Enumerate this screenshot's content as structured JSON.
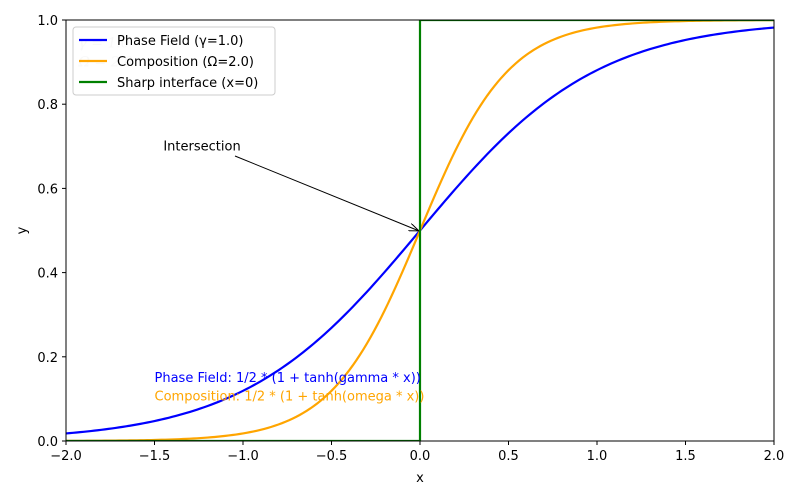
{
  "chart_data": {
    "type": "line",
    "xlabel": "x",
    "ylabel": "y",
    "xlim": [
      -2.0,
      2.0
    ],
    "ylim": [
      0.0,
      1.0
    ],
    "x_ticks": [
      "−2.0",
      "−1.5",
      "−1.0",
      "−0.5",
      "0.0",
      "0.5",
      "1.0",
      "1.5",
      "2.0"
    ],
    "x_tick_values": [
      -2.0,
      -1.5,
      -1.0,
      -0.5,
      0.0,
      0.5,
      1.0,
      1.5,
      2.0
    ],
    "y_ticks": [
      "0.0",
      "0.2",
      "0.4",
      "0.6",
      "0.8",
      "1.0"
    ],
    "y_tick_values": [
      0.0,
      0.2,
      0.4,
      0.6,
      0.8,
      1.0
    ],
    "grid": false,
    "legend_position": "top-left",
    "x": [
      -2.0,
      -1.75,
      -1.5,
      -1.25,
      -1.0,
      -0.75,
      -0.5,
      -0.25,
      0.0,
      0.25,
      0.5,
      0.75,
      1.0,
      1.25,
      1.5,
      1.75,
      2.0
    ],
    "series": [
      {
        "name": "Phase Field (γ=1.0)",
        "color": "#0000ff",
        "values": [
          0.018,
          0.029,
          0.047,
          0.076,
          0.119,
          0.182,
          0.269,
          0.378,
          0.5,
          0.622,
          0.731,
          0.818,
          0.881,
          0.924,
          0.953,
          0.971,
          0.982
        ]
      },
      {
        "name": "Composition (Ω=2.0)",
        "color": "#ffa500",
        "values": [
          0.0003,
          0.0009,
          0.0025,
          0.0067,
          0.018,
          0.047,
          0.119,
          0.269,
          0.5,
          0.731,
          0.881,
          0.953,
          0.982,
          0.993,
          0.998,
          0.999,
          1.0
        ]
      },
      {
        "name": "Sharp interface (x=0)",
        "color": "#008000",
        "step_at": 0.0,
        "values_left": 0.0,
        "values_right": 1.0
      }
    ],
    "annotation": {
      "text": "Intersection",
      "point": [
        0.0,
        0.5
      ],
      "text_at": [
        -1.45,
        0.69
      ]
    },
    "notes": [
      {
        "text": "Phase Field: 1/2 * (1 + tanh(gamma * x))",
        "color": "#0000ff",
        "at": [
          -1.5,
          0.14
        ]
      },
      {
        "text": "Composition: 1/2 * (1 + tanh(omega * x))",
        "color": "#ffa500",
        "at": [
          -1.5,
          0.096
        ]
      }
    ],
    "parameter_labels": [
      {
        "text": "γ = 1.0",
        "at": [
          -1.93,
          0.935
        ]
      },
      {
        "text": "Ω = 2.0",
        "at": [
          -1.93,
          0.89
        ]
      }
    ]
  }
}
